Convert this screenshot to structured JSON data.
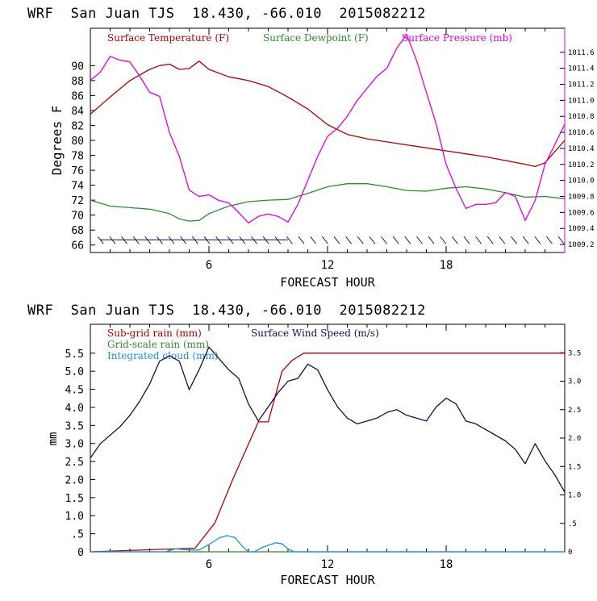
{
  "colors": {
    "red": "#b00000",
    "green": "#2e8b2e",
    "magenta": "#e000e0",
    "navy": "#1a0a50",
    "blue": "#1f8fe0",
    "black": "#000000"
  },
  "chart_data": [
    {
      "type": "line",
      "title": "WRF  San Juan TJS  18.430, -66.010  2015082212",
      "xlabel": "FORECAST HOUR",
      "ylabel": "Degrees F",
      "xlim": [
        0,
        24
      ],
      "ylim": [
        65,
        95
      ],
      "y2lim": [
        1009.1,
        1011.9
      ],
      "xticks": [
        "6",
        "12",
        "18"
      ],
      "yticks": [
        "66",
        "68",
        "70",
        "72",
        "74",
        "76",
        "78",
        "80",
        "82",
        "84",
        "86",
        "88",
        "90"
      ],
      "y2ticks": [
        "1009.2",
        "1009.4",
        "1009.6",
        "1009.8",
        "1010.0",
        "1010.2",
        "1010.4",
        "1010.6",
        "1010.8",
        "1011.0",
        "1011.2",
        "1011.4",
        "1011.6"
      ],
      "legend": [
        "Surface Temperature (F)",
        "Surface Dewpoint (F)",
        "Surface Pressure (mb)"
      ],
      "series": [
        {
          "name": "Surface Temperature (F)",
          "color": "red",
          "axis": "left",
          "x": [
            0,
            1,
            2,
            3,
            3.5,
            4,
            4.5,
            5,
            5.5,
            6,
            7,
            8,
            9,
            10,
            11,
            12,
            13,
            14,
            15,
            16,
            17,
            18,
            19,
            20,
            21,
            22,
            22.5,
            23,
            24
          ],
          "y": [
            83.5,
            85.8,
            88,
            89.5,
            90,
            90.2,
            89.5,
            89.6,
            90.6,
            89.5,
            88.5,
            88,
            87.2,
            85.8,
            84.2,
            82.1,
            80.8,
            80.2,
            79.8,
            79.4,
            79,
            78.6,
            78.2,
            77.8,
            77.3,
            76.8,
            76.5,
            77,
            80
          ]
        },
        {
          "name": "Surface Dewpoint (F)",
          "color": "green",
          "axis": "left",
          "x": [
            0,
            1,
            2,
            3,
            4,
            4.5,
            5,
            5.5,
            6,
            7,
            8,
            9,
            10,
            11,
            12,
            13,
            14,
            15,
            16,
            17,
            18,
            19,
            20,
            21,
            22,
            23,
            24
          ],
          "y": [
            72,
            71.2,
            71,
            70.8,
            70.2,
            69.5,
            69.2,
            69.3,
            70.2,
            71.2,
            71.8,
            72,
            72.1,
            72.9,
            73.8,
            74.2,
            74.2,
            73.8,
            73.3,
            73.2,
            73.6,
            73.8,
            73.5,
            73.0,
            72.4,
            72.5,
            72.2
          ]
        },
        {
          "name": "Surface Pressure (mb)",
          "color": "magenta",
          "axis": "right",
          "x": [
            0,
            0.5,
            1,
            1.5,
            2,
            2.5,
            3,
            3.5,
            4,
            4.5,
            5,
            5.5,
            6,
            6.5,
            7,
            7.5,
            8,
            8.5,
            9,
            9.5,
            10,
            10.5,
            11,
            11.5,
            12,
            12.5,
            13,
            13.5,
            14,
            14.5,
            15,
            15.5,
            16,
            16.5,
            17,
            17.5,
            18,
            18.5,
            19,
            19.5,
            20,
            20.5,
            21,
            21.5,
            22,
            22.5,
            23,
            23.5,
            24
          ],
          "y": [
            1011.25,
            1011.35,
            1011.55,
            1011.5,
            1011.48,
            1011.3,
            1011.1,
            1011.05,
            1010.6,
            1010.3,
            1009.88,
            1009.8,
            1009.82,
            1009.75,
            1009.72,
            1009.6,
            1009.47,
            1009.55,
            1009.58,
            1009.55,
            1009.48,
            1009.7,
            1010.0,
            1010.3,
            1010.55,
            1010.65,
            1010.8,
            1011.0,
            1011.15,
            1011.3,
            1011.4,
            1011.65,
            1011.82,
            1011.5,
            1011.1,
            1010.7,
            1010.2,
            1009.9,
            1009.65,
            1009.7,
            1009.7,
            1009.72,
            1009.85,
            1009.8,
            1009.5,
            1009.75,
            1010.2,
            1010.45,
            1010.7
          ]
        }
      ],
      "wind_barbs": {
        "y": 66.7,
        "count": 40
      }
    },
    {
      "type": "line",
      "title": "WRF  San Juan TJS  18.430, -66.010  2015082212",
      "xlabel": "FORECAST HOUR",
      "ylabel": "mm",
      "xlim": [
        0,
        24
      ],
      "ylim": [
        0,
        6.3
      ],
      "y2lim": [
        0,
        4.0
      ],
      "xticks": [
        "6",
        "12",
        "18"
      ],
      "yticks": [
        "0",
        ".5",
        "1.0",
        "1.5",
        "2.0",
        "2.5",
        "3.0",
        "3.5",
        "4.0",
        "4.5",
        "5.0",
        "5.5"
      ],
      "y2ticks": [
        "0",
        ".5",
        "1.0",
        "1.5",
        "2.0",
        "2.5",
        "3.0",
        "3.5"
      ],
      "legend": [
        "Sub-grid rain (mm)",
        "Grid-scale rain (mm)",
        "Integrated cloud (mm)",
        "Surface Wind Speed (m/s)"
      ],
      "series": [
        {
          "name": "Sub-grid rain (mm)",
          "color": "red",
          "axis": "left",
          "x": [
            0,
            5.3,
            6.3,
            7.2,
            8.5,
            9.0,
            9.7,
            10.2,
            10.8,
            24
          ],
          "y": [
            0,
            0.1,
            0.8,
            2.0,
            3.6,
            3.6,
            5.0,
            5.3,
            5.5,
            5.5
          ]
        },
        {
          "name": "Grid-scale rain (mm)",
          "color": "green",
          "axis": "left",
          "x": [
            0,
            24
          ],
          "y": [
            0,
            0
          ]
        },
        {
          "name": "Integrated cloud (mm)",
          "color": "blue",
          "axis": "left",
          "x": [
            0,
            3.8,
            4.3,
            5,
            5.5,
            6,
            6.5,
            6.9,
            7.3,
            7.7,
            8.0,
            8.3,
            8.7,
            9.0,
            9.4,
            9.7,
            10,
            10.3,
            24
          ],
          "y": [
            0,
            0,
            0.08,
            0.05,
            0.05,
            0.2,
            0.38,
            0.45,
            0.4,
            0.15,
            0,
            0,
            0.12,
            0.18,
            0.25,
            0.22,
            0.08,
            0,
            0
          ]
        },
        {
          "name": "Surface Wind Speed (m/s)",
          "color": "navy",
          "axis": "right",
          "x": [
            0,
            0.5,
            1,
            1.5,
            2,
            2.5,
            3,
            3.5,
            4,
            4.5,
            5,
            5.5,
            6,
            6.5,
            7,
            7.5,
            8,
            8.5,
            9,
            9.5,
            10,
            10.5,
            11,
            11.5,
            12,
            12.5,
            13,
            13.5,
            14,
            14.5,
            15,
            15.5,
            16,
            16.5,
            17,
            17.5,
            18,
            18.5,
            19,
            19.5,
            20,
            20.5,
            21,
            21.5,
            22,
            22.5,
            23,
            23.5,
            24
          ],
          "y": [
            1.65,
            1.9,
            2.05,
            2.2,
            2.4,
            2.65,
            2.95,
            3.35,
            3.45,
            3.35,
            2.85,
            3.2,
            3.6,
            3.4,
            3.2,
            3.05,
            2.6,
            2.3,
            2.55,
            2.8,
            3.0,
            3.05,
            3.3,
            3.2,
            2.85,
            2.55,
            2.35,
            2.25,
            2.3,
            2.35,
            2.45,
            2.5,
            2.4,
            2.35,
            2.3,
            2.55,
            2.7,
            2.6,
            2.3,
            2.25,
            2.15,
            2.05,
            1.95,
            1.8,
            1.55,
            1.9,
            1.6,
            1.35,
            1.05
          ]
        }
      ]
    }
  ]
}
